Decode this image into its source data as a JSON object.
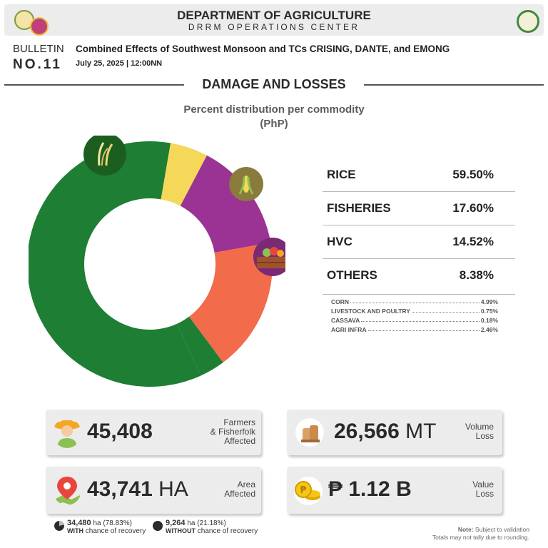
{
  "header": {
    "title": "DEPARTMENT OF AGRICULTURE",
    "subtitle": "DRRM OPERATIONS CENTER"
  },
  "bulletin": {
    "label": "BULLETIN",
    "number": "NO.11",
    "headline": "Combined Effects of Southwest Monsoon and TCs CRISING, DANTE, and EMONG",
    "date": "July 25, 2025 | 12:00NN"
  },
  "section_title": "DAMAGE AND LOSSES",
  "chart_data": {
    "type": "pie",
    "title": "Percent distribution per commodity",
    "subtitle": "(PhP)",
    "slices": [
      {
        "name": "RICE",
        "value": 59.5,
        "color": "#1e7e34"
      },
      {
        "name": "CORN",
        "value": 4.99,
        "color": "#f5d85a"
      },
      {
        "name": "HVC",
        "value": 14.52,
        "color": "#9a3393"
      },
      {
        "name": "FISHERIES",
        "value": 17.6,
        "color": "#f26b4b"
      },
      {
        "name": "OTHERS",
        "value": 3.39,
        "color": "#1e7e34"
      }
    ],
    "table": [
      {
        "label": "RICE",
        "value": "59.50%"
      },
      {
        "label": "FISHERIES",
        "value": "17.60%"
      },
      {
        "label": "HVC",
        "value": "14.52%"
      },
      {
        "label": "OTHERS",
        "value": "8.38%"
      }
    ],
    "others_breakdown": [
      {
        "label": "CORN",
        "value": "4.99%"
      },
      {
        "label": "LIVESTOCK AND POULTRY",
        "value": "0.75%"
      },
      {
        "label": "CASSAVA",
        "value": "0.18%"
      },
      {
        "label": "AGRI INFRA",
        "value": "2.46%"
      }
    ]
  },
  "stats": {
    "farmers": {
      "value": "45,408",
      "caption1": "Farmers",
      "caption2": "& Fisherfolk",
      "caption3": "Affected"
    },
    "volume": {
      "value": "26,566",
      "unit": "MT",
      "caption1": "Volume",
      "caption2": "Loss"
    },
    "area": {
      "value": "43,741",
      "unit": "HA",
      "caption1": "Area",
      "caption2": "Affected"
    },
    "value_loss": {
      "value": "₱ 1.12 B",
      "caption1": "Value",
      "caption2": "Loss"
    }
  },
  "recovery": {
    "with_value": "34,480",
    "with_unit": "ha (78.83%)",
    "with_label": "WITH",
    "with_suffix": "chance of recovery",
    "with_fraction": 0.7883,
    "without_value": "9,264",
    "without_unit": "ha (21.18%)",
    "without_label": "WITHOUT",
    "without_suffix": "chance of recovery"
  },
  "note": {
    "label": "Note:",
    "line1": "Subject to validation",
    "line2": "Totals may not tally due to rounding."
  },
  "icons": {
    "rice": "rice-stalk-icon",
    "corn": "corn-icon",
    "hvc": "vegetable-crate-icon",
    "farmer": "farmer-icon",
    "volume": "sacks-icon",
    "area": "map-pin-icon",
    "value": "coins-icon"
  }
}
